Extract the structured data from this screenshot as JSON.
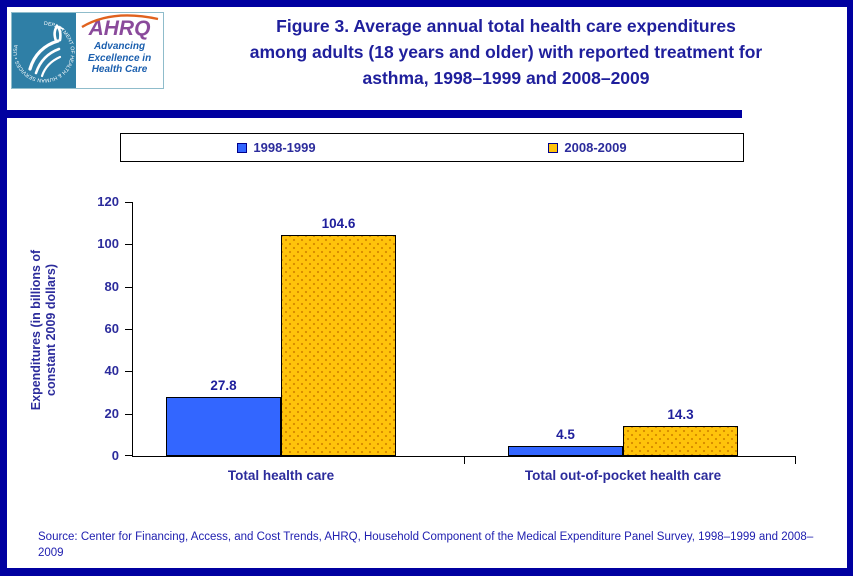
{
  "header": {
    "title_lines": [
      "Figure 3. Average annual total health care expenditures",
      "among adults (18 years and older) with reported treatment for",
      "asthma, 1998–1999 and 2008–2009"
    ]
  },
  "logo": {
    "acronym": "AHRQ",
    "tagline_lines": [
      "Advancing",
      "Excellence in",
      "Health Care"
    ],
    "seal_text": "DEPARTMENT OF HEALTH & HUMAN SERVICES • USA"
  },
  "legend": {
    "items": [
      {
        "label": "1998-1999",
        "color": "#3366FF"
      },
      {
        "label": "2008-2009",
        "color": "#FFC30B"
      }
    ]
  },
  "chart_data": {
    "type": "bar",
    "categories": [
      "Total health care",
      "Total out-of-pocket health care"
    ],
    "series": [
      {
        "name": "1998-1999",
        "values": [
          27.8,
          4.5
        ],
        "color": "#3366FF"
      },
      {
        "name": "2008-2009",
        "values": [
          104.6,
          14.3
        ],
        "color": "#FFC30B"
      }
    ],
    "ylabel": "Expenditures (in billions of constant 2009 dollars)",
    "xlabel": "",
    "ylim": [
      0,
      120
    ],
    "yticks": [
      0,
      20,
      40,
      60,
      80,
      100,
      120
    ],
    "grid": false,
    "legend_position": "top",
    "value_labels": true
  },
  "source": {
    "text": "Source: Center for Financing, Access, and Cost Trends, AHRQ, Household Component of the Medical Expenditure Panel Survey, 1998–1999 and 2008–2009"
  },
  "colors": {
    "navy": "#0000A0",
    "title_text": "#1F1F9C",
    "axis_text": "#2C2C9C",
    "source_text": "#2020B0",
    "bar_blue": "#3366FF",
    "bar_yellow": "#FFC30B",
    "yellow_dot": "#D88C00",
    "seal_teal": "#2F7FA6",
    "ahrq_purple": "#8A4A9B",
    "swoosh_orange": "#E0621E",
    "tagline_blue": "#1B5FAE"
  }
}
